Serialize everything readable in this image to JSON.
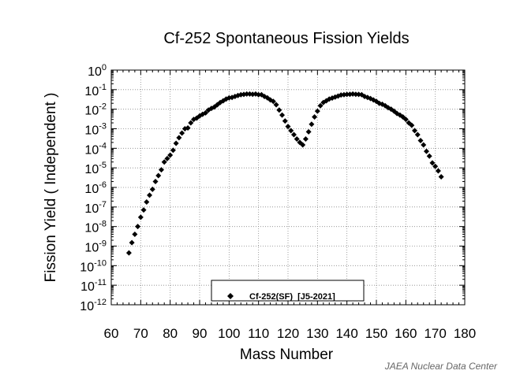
{
  "chart_data": {
    "type": "scatter",
    "title": "Cf-252  Spontaneous Fission Yields",
    "xlabel": "Mass Number",
    "ylabel": "Fission Yield  ( Independent )",
    "xlim": [
      60,
      180
    ],
    "ylim_exponent": [
      -12,
      0
    ],
    "y_scale": "log",
    "grid": "dotted",
    "x_ticks": [
      "60",
      "70",
      "80",
      "90",
      "100",
      "110",
      "120",
      "130",
      "140",
      "150",
      "160",
      "170",
      "180"
    ],
    "y_ticks": [
      {
        "base": "10",
        "exp": "0"
      },
      {
        "base": "10",
        "exp": "-1"
      },
      {
        "base": "10",
        "exp": "-2"
      },
      {
        "base": "10",
        "exp": "-3"
      },
      {
        "base": "10",
        "exp": "-4"
      },
      {
        "base": "10",
        "exp": "-5"
      },
      {
        "base": "10",
        "exp": "-6"
      },
      {
        "base": "10",
        "exp": "-7"
      },
      {
        "base": "10",
        "exp": "-8"
      },
      {
        "base": "10",
        "exp": "-9"
      },
      {
        "base": "10",
        "exp": "-10"
      },
      {
        "base": "10",
        "exp": "-11"
      },
      {
        "base": "10",
        "exp": "-12"
      }
    ],
    "legend_position": "bottom-center",
    "series": [
      {
        "name": "Cf-252(SF)  [J5-2021]",
        "marker": "diamond",
        "color": "#000000",
        "x": [
          66,
          67,
          68,
          69,
          70,
          71,
          72,
          73,
          74,
          75,
          76,
          77,
          78,
          79,
          80,
          81,
          82,
          83,
          84,
          85,
          86,
          87,
          88,
          89,
          90,
          91,
          92,
          93,
          94,
          95,
          96,
          97,
          98,
          99,
          100,
          101,
          102,
          103,
          104,
          105,
          106,
          107,
          108,
          109,
          110,
          111,
          112,
          113,
          114,
          115,
          116,
          117,
          118,
          119,
          120,
          121,
          122,
          123,
          124,
          125,
          126,
          127,
          128,
          129,
          130,
          131,
          132,
          133,
          134,
          135,
          136,
          137,
          138,
          139,
          140,
          141,
          142,
          143,
          144,
          145,
          146,
          147,
          148,
          149,
          150,
          151,
          152,
          153,
          154,
          155,
          156,
          157,
          158,
          159,
          160,
          161,
          162,
          163,
          164,
          165,
          166,
          167,
          168,
          169,
          170,
          171,
          172
        ],
        "y": [
          4.5e-10,
          1.5e-09,
          4e-09,
          1e-08,
          3e-08,
          7e-08,
          1.8e-07,
          4e-07,
          8e-07,
          2e-06,
          4e-06,
          8e-06,
          2e-05,
          3e-05,
          4.5e-05,
          8e-05,
          0.00018,
          0.00035,
          0.0006,
          0.001,
          0.0011,
          0.002,
          0.003,
          0.0035,
          0.0045,
          0.0055,
          0.0065,
          0.009,
          0.011,
          0.013,
          0.017,
          0.022,
          0.027,
          0.033,
          0.038,
          0.04,
          0.045,
          0.05,
          0.055,
          0.057,
          0.06,
          0.06,
          0.058,
          0.06,
          0.055,
          0.055,
          0.045,
          0.038,
          0.03,
          0.025,
          0.017,
          0.009,
          0.005,
          0.0025,
          0.0013,
          0.0008,
          0.0005,
          0.0003,
          0.0002,
          0.00015,
          0.0003,
          0.0007,
          0.0017,
          0.004,
          0.008,
          0.015,
          0.022,
          0.027,
          0.033,
          0.037,
          0.042,
          0.047,
          0.053,
          0.055,
          0.057,
          0.058,
          0.06,
          0.058,
          0.057,
          0.055,
          0.045,
          0.04,
          0.035,
          0.03,
          0.025,
          0.02,
          0.018,
          0.015,
          0.012,
          0.01,
          0.008,
          0.006,
          0.005,
          0.004,
          0.003,
          0.002,
          0.0015,
          0.0008,
          0.0005,
          0.00025,
          0.00015,
          7e-05,
          4e-05,
          1.8e-05,
          1.2e-05,
          7e-06,
          3.5e-06
        ]
      }
    ]
  },
  "credit": "JAEA Nuclear Data Center"
}
